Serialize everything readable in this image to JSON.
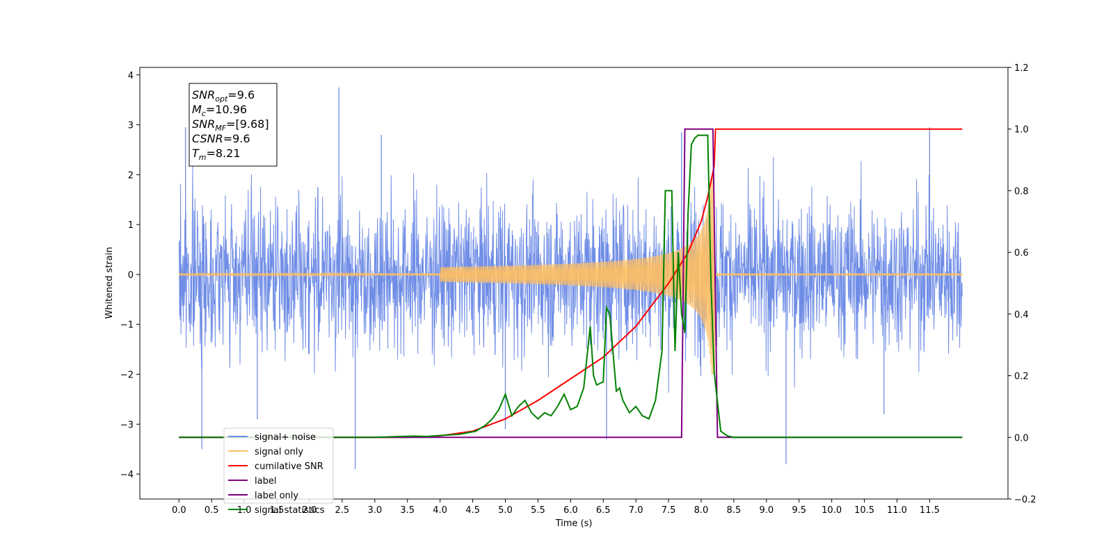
{
  "chart_data": {
    "type": "line",
    "xlabel": "Time (s)",
    "ylabel": "Whitened strain",
    "xlim": [
      -0.6,
      12.7
    ],
    "ylim_left": [
      -4.5,
      4.15
    ],
    "ylim_right": [
      -0.2,
      1.2
    ],
    "x_ticks": [
      "0.0",
      "0.5",
      "1.0",
      "1.5",
      "2.0",
      "2.5",
      "3.0",
      "3.5",
      "4.0",
      "4.5",
      "5.0",
      "5.5",
      "6.0",
      "6.5",
      "7.0",
      "7.5",
      "8.0",
      "8.5",
      "9.0",
      "9.5",
      "10.0",
      "10.5",
      "11.0",
      "11.5"
    ],
    "y_ticks_left": [
      "4",
      "3",
      "2",
      "1",
      "0",
      "−1",
      "−2",
      "−3",
      "−4"
    ],
    "y_ticks_right": [
      "1.2",
      "1.0",
      "0.8",
      "0.6",
      "0.4",
      "0.2",
      "0.0",
      "−0.2"
    ],
    "info_box": [
      {
        "sym": "SNR",
        "sub": "opt",
        "val": "=9.6"
      },
      {
        "sym": "M",
        "sub": "c",
        "val": "=10.96"
      },
      {
        "sym": "SNR",
        "sub": "MF",
        "val": "=[9.68]"
      },
      {
        "sym": "CSNR",
        "sub": "",
        "val": "=9.6"
      },
      {
        "sym": "T",
        "sub": "m",
        "val": "=8.21"
      }
    ],
    "colors": {
      "noise": "#6f8de6",
      "signal": "#e8a44a",
      "csnr": "#ff0000",
      "label": "#800080",
      "stats": "#008000"
    },
    "series": [
      {
        "name": "signal+ noise",
        "axis": "left",
        "color": "#6f8de6",
        "description_type": "noise",
        "x_range": [
          0.0,
          12.0
        ],
        "std": 0.75,
        "spikes": [
          [
            0.1,
            2.95
          ],
          [
            0.35,
            -3.5
          ],
          [
            1.2,
            -2.9
          ],
          [
            2.45,
            3.75
          ],
          [
            2.7,
            -3.9
          ],
          [
            3.1,
            2.8
          ],
          [
            6.55,
            -3.3
          ],
          [
            7.7,
            2.85
          ],
          [
            9.3,
            -3.8
          ],
          [
            11.5,
            2.95
          ],
          [
            5.0,
            -3.1
          ],
          [
            10.8,
            -2.8
          ]
        ]
      },
      {
        "name": "signal only",
        "axis": "left",
        "color": "#ffbf60",
        "merger_time": 8.21,
        "peak_amplitude": 2.0
      },
      {
        "name": "cumilative SNR",
        "axis": "right",
        "color": "#ff0000",
        "x": [
          0.0,
          3.5,
          4.0,
          4.5,
          5.0,
          5.5,
          6.0,
          6.5,
          7.0,
          7.5,
          7.8,
          8.0,
          8.1,
          8.2,
          8.22,
          12.0
        ],
        "y": [
          0.0,
          0.0,
          0.005,
          0.02,
          0.06,
          0.12,
          0.19,
          0.26,
          0.36,
          0.5,
          0.6,
          0.7,
          0.78,
          0.88,
          1.0,
          1.0
        ]
      },
      {
        "name": "label",
        "axis": "right",
        "color": "#800080",
        "x": [
          0.0,
          7.7,
          7.75,
          8.18,
          8.25,
          12.0
        ],
        "y": [
          0.0,
          0.0,
          1.0,
          1.0,
          0.0,
          0.0
        ]
      },
      {
        "name": "label only",
        "axis": "right",
        "color": "#800080",
        "hidden": true
      },
      {
        "name": "signal statistics",
        "axis": "right",
        "color": "#008000",
        "x": [
          0.0,
          3.0,
          3.4,
          3.6,
          3.8,
          4.0,
          4.3,
          4.55,
          4.7,
          4.8,
          4.9,
          5.0,
          5.1,
          5.2,
          5.3,
          5.4,
          5.5,
          5.6,
          5.7,
          5.8,
          5.9,
          6.0,
          6.1,
          6.2,
          6.3,
          6.35,
          6.4,
          6.5,
          6.55,
          6.6,
          6.7,
          6.75,
          6.8,
          6.9,
          7.0,
          7.1,
          7.2,
          7.3,
          7.4,
          7.45,
          7.55,
          7.6,
          7.65,
          7.7,
          7.75,
          7.8,
          7.85,
          7.9,
          7.95,
          8.0,
          8.1,
          8.15,
          8.2,
          8.3,
          8.4,
          8.5,
          9.0,
          12.0
        ],
        "y": [
          0.0,
          0.0,
          0.003,
          0.004,
          0.003,
          0.006,
          0.01,
          0.02,
          0.04,
          0.06,
          0.09,
          0.14,
          0.07,
          0.1,
          0.12,
          0.08,
          0.06,
          0.08,
          0.07,
          0.1,
          0.14,
          0.09,
          0.1,
          0.16,
          0.36,
          0.2,
          0.17,
          0.18,
          0.42,
          0.4,
          0.15,
          0.16,
          0.12,
          0.08,
          0.1,
          0.07,
          0.06,
          0.12,
          0.28,
          0.8,
          0.8,
          0.28,
          0.6,
          0.4,
          0.34,
          0.73,
          0.95,
          0.97,
          0.98,
          0.98,
          0.98,
          0.5,
          0.21,
          0.02,
          0.005,
          0.0,
          0.0,
          0.0
        ]
      }
    ],
    "legend": {
      "placement": "lower-left",
      "entries": [
        {
          "label": "signal+ noise",
          "color": "#6f8de6"
        },
        {
          "label": "signal only",
          "color": "#ffbf60"
        },
        {
          "label": "cumilative SNR",
          "color": "#ff0000"
        },
        {
          "label": "label",
          "color": "#800080"
        },
        {
          "label": "label only",
          "color": "#800080"
        },
        {
          "label": "signal statistics",
          "color": "#008000"
        }
      ]
    }
  }
}
